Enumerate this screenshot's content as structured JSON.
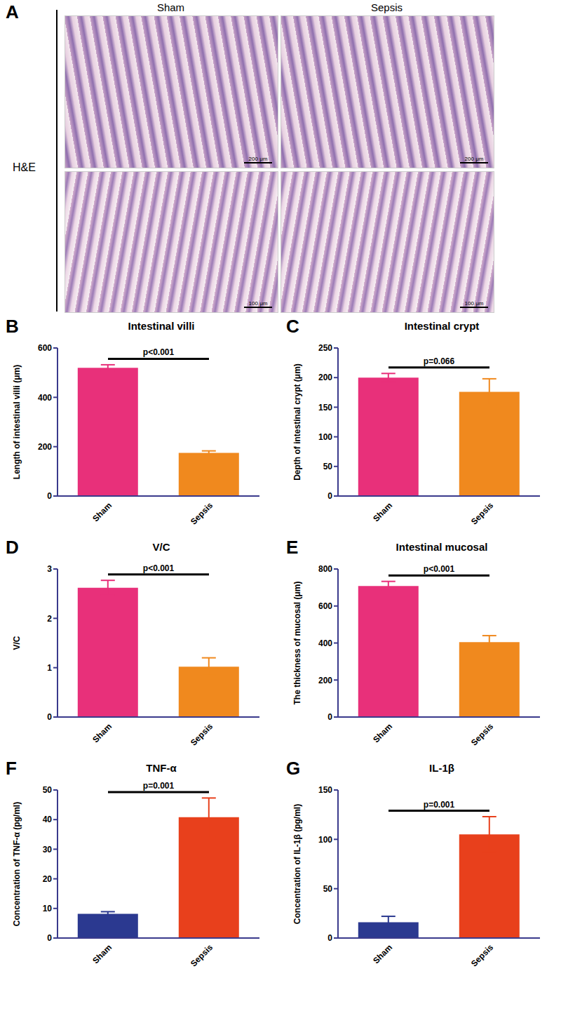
{
  "panel_a": {
    "panel": "A",
    "stain": "H&E",
    "columns": [
      "Sham",
      "Sepsis"
    ],
    "scale_bars": [
      "200 μm",
      "100 μm"
    ]
  },
  "chart_data": [
    {
      "type": "bar",
      "panel": "B",
      "title": "Intestinal villi",
      "ylabel": "Length of intestinal villi (μm)",
      "categories": [
        "Sham",
        "Sepsis"
      ],
      "values": [
        520,
        175
      ],
      "errors": [
        12,
        8
      ],
      "colors": [
        "#e8307a",
        "#f0891e"
      ],
      "ylim": [
        0,
        600
      ],
      "yticks": [
        0,
        200,
        400,
        600
      ],
      "annotation": "p<0.001"
    },
    {
      "type": "bar",
      "panel": "C",
      "title": "Intestinal crypt",
      "ylabel": "Depth of intestinal crypt (μm)",
      "categories": [
        "Sham",
        "Sepsis"
      ],
      "values": [
        200,
        176
      ],
      "errors": [
        7,
        22
      ],
      "colors": [
        "#e8307a",
        "#f0891e"
      ],
      "ylim": [
        0,
        250
      ],
      "yticks": [
        0,
        50,
        100,
        150,
        200,
        250
      ],
      "annotation": "p=0.066"
    },
    {
      "type": "bar",
      "panel": "D",
      "title": "V/C",
      "ylabel": "V/C",
      "categories": [
        "Sham",
        "Sepsis"
      ],
      "values": [
        2.62,
        1.02
      ],
      "errors": [
        0.15,
        0.18
      ],
      "colors": [
        "#e8307a",
        "#f0891e"
      ],
      "ylim": [
        0,
        3
      ],
      "yticks": [
        0,
        1,
        2,
        3
      ],
      "annotation": "p<0.001"
    },
    {
      "type": "bar",
      "panel": "E",
      "title": "Intestinal mucosal",
      "ylabel": "The thickness of mucosal (μm)",
      "categories": [
        "Sham",
        "Sepsis"
      ],
      "values": [
        708,
        405
      ],
      "errors": [
        25,
        35
      ],
      "colors": [
        "#e8307a",
        "#f0891e"
      ],
      "ylim": [
        0,
        800
      ],
      "yticks": [
        0,
        200,
        400,
        600,
        800
      ],
      "annotation": "p<0.001"
    },
    {
      "type": "bar",
      "panel": "F",
      "title": "TNF-α",
      "ylabel": "Concentration of TNF-α (pg/ml)",
      "categories": [
        "Sham",
        "Sepsis"
      ],
      "values": [
        8.2,
        40.8
      ],
      "errors": [
        0.7,
        6.5
      ],
      "colors": [
        "#2b3990",
        "#e8401c"
      ],
      "ylim": [
        0,
        50
      ],
      "yticks": [
        0,
        10,
        20,
        30,
        40,
        50
      ],
      "annotation": "p=0.001"
    },
    {
      "type": "bar",
      "panel": "G",
      "title": "IL-1β",
      "ylabel": "Concentration of IL-1β (pg/ml)",
      "categories": [
        "Sham",
        "Sepsis"
      ],
      "values": [
        16,
        105
      ],
      "errors": [
        6,
        18
      ],
      "colors": [
        "#2b3990",
        "#e8401c"
      ],
      "ylim": [
        0,
        150
      ],
      "yticks": [
        0,
        50,
        100,
        150
      ],
      "annotation": "p=0.001"
    }
  ]
}
